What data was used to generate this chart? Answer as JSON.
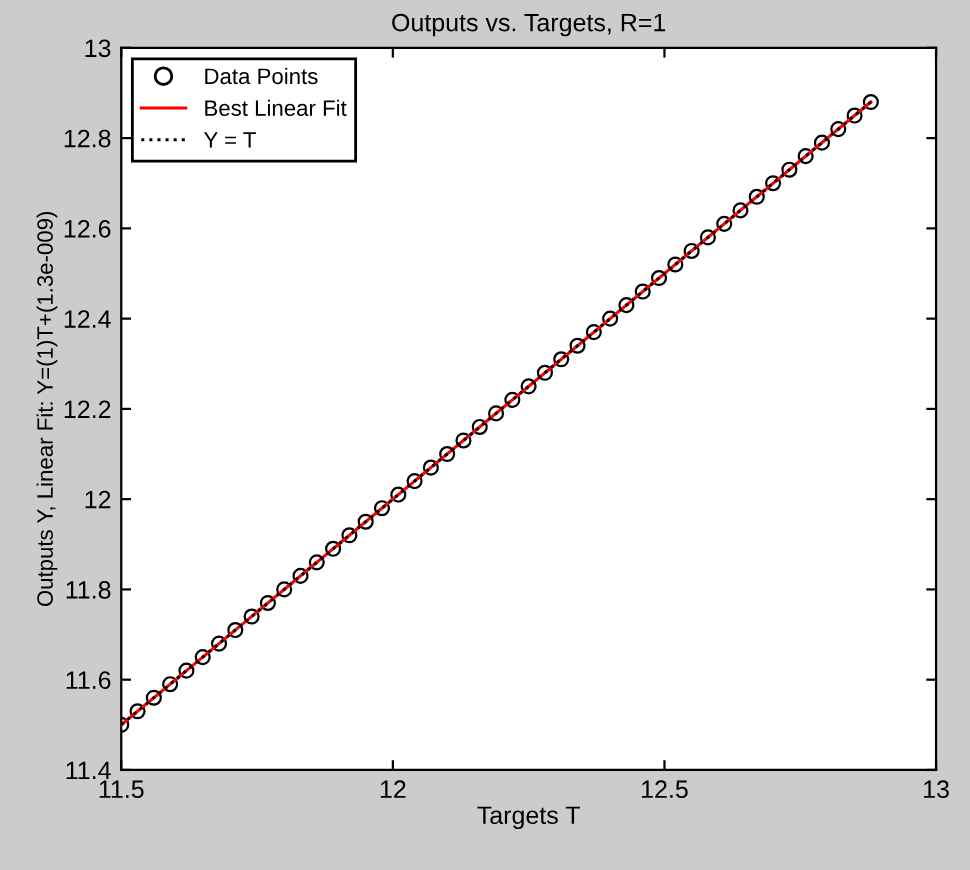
{
  "chart_data": {
    "type": "scatter",
    "title": "Outputs vs. Targets, R=1",
    "xlabel": "Targets T",
    "ylabel": "Outputs Y, Linear Fit: Y=(1)T+(1.3e-009)",
    "xlim": [
      11.5,
      13
    ],
    "xticks": [
      11.5,
      12,
      12.5,
      13
    ],
    "ylim": [
      11.4,
      13
    ],
    "yticks": [
      11.4,
      11.6,
      11.8,
      12,
      12.2,
      12.4,
      12.6,
      12.8,
      13
    ],
    "grid": false,
    "legend": "top left",
    "series": [
      {
        "name": "Data Points",
        "marker": "circle",
        "color": "#000000",
        "x": [
          11.5,
          11.53,
          11.56,
          11.59,
          11.62,
          11.65,
          11.68,
          11.71,
          11.74,
          11.77,
          11.8,
          11.83,
          11.86,
          11.89,
          11.92,
          11.95,
          11.98,
          12.01,
          12.04,
          12.07,
          12.1,
          12.13,
          12.16,
          12.19,
          12.22,
          12.25,
          12.28,
          12.31,
          12.34,
          12.37,
          12.4,
          12.43,
          12.46,
          12.49,
          12.52,
          12.55,
          12.58,
          12.61,
          12.64,
          12.67,
          12.7,
          12.73,
          12.76,
          12.79,
          12.82,
          12.85,
          12.88
        ],
        "values": [
          11.5,
          11.53,
          11.56,
          11.59,
          11.62,
          11.65,
          11.68,
          11.71,
          11.74,
          11.77,
          11.8,
          11.83,
          11.86,
          11.89,
          11.92,
          11.95,
          11.98,
          12.01,
          12.04,
          12.07,
          12.1,
          12.13,
          12.16,
          12.19,
          12.22,
          12.25,
          12.28,
          12.31,
          12.34,
          12.37,
          12.4,
          12.43,
          12.46,
          12.49,
          12.52,
          12.55,
          12.58,
          12.61,
          12.64,
          12.67,
          12.7,
          12.73,
          12.76,
          12.79,
          12.82,
          12.85,
          12.88
        ]
      },
      {
        "name": "Best Linear Fit",
        "type": "line",
        "line_style": "solid",
        "color": "#ff0000",
        "x": [
          11.5,
          12.88
        ],
        "values": [
          11.5,
          12.88
        ]
      },
      {
        "name": "Y = T",
        "type": "line",
        "line_style": "dotted",
        "color": "#000000",
        "x": [
          11.5,
          12.88
        ],
        "values": [
          11.5,
          12.88
        ]
      }
    ]
  }
}
